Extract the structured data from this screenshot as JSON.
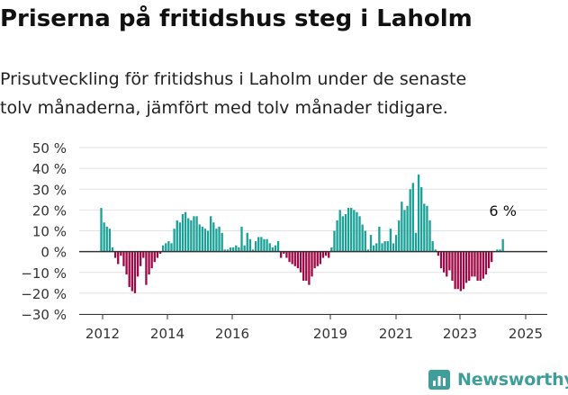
{
  "header": {
    "title": "Priserna på fritidshus steg i Laholm",
    "subtitle_line1": "Prisutveckling för fritidshus i Laholm under de senaste",
    "subtitle_line2": "tolv månaderna, jämfört med tolv månader tidigare."
  },
  "brand": {
    "name": "Newsworthy",
    "icon": "newsworthy-logo-icon",
    "color": "#3f9e9a"
  },
  "colors": {
    "positive": "#1aa197",
    "negative": "#9e0846",
    "axis": "#333333",
    "grid": "#e2e2e2"
  },
  "chart_data": {
    "type": "bar",
    "title": "",
    "xlabel": "",
    "ylabel": "",
    "ylim": [
      -30,
      50
    ],
    "yticks": [
      {
        "value": 50,
        "label": "50 %"
      },
      {
        "value": 40,
        "label": "40 %"
      },
      {
        "value": 30,
        "label": "30 %"
      },
      {
        "value": 20,
        "label": "20 %"
      },
      {
        "value": 10,
        "label": "10 %"
      },
      {
        "value": 0,
        "label": "0 %"
      },
      {
        "value": -10,
        "label": "−10 %"
      },
      {
        "value": -20,
        "label": "−20 %"
      },
      {
        "value": -30,
        "label": "−30 %"
      }
    ],
    "xticks": [
      "2012",
      "2014",
      "2016",
      "2019",
      "2021",
      "2023",
      "2025"
    ],
    "grid": true,
    "annotation": {
      "label": "6 %",
      "value": 6
    },
    "series": [
      {
        "year": 2012,
        "values": [
          21,
          14,
          12,
          11,
          2,
          -3,
          -6,
          -2,
          -7,
          -11,
          -17,
          -19,
          -20
        ]
      },
      {
        "year": 2013,
        "values": [
          -12,
          -7,
          -3,
          -16,
          -11,
          -8,
          -5,
          -3,
          -1,
          3,
          4,
          5,
          4
        ]
      },
      {
        "year": 2014,
        "values": [
          11,
          15,
          14,
          18,
          19,
          16,
          15,
          17,
          17,
          13,
          12,
          11,
          10
        ]
      },
      {
        "year": 2015,
        "values": [
          17,
          14,
          11,
          12,
          9,
          1,
          1,
          2,
          2,
          3,
          2,
          12,
          3
        ]
      },
      {
        "year": 2016,
        "values": [
          9,
          6,
          1,
          5,
          7,
          7,
          6,
          6,
          4,
          2,
          3,
          5,
          -3
        ]
      },
      {
        "year": 2017,
        "values": [
          -1,
          -3,
          -5,
          -6,
          -7,
          -8,
          -10,
          -14,
          -14,
          -16,
          -12,
          -8,
          -7
        ]
      },
      {
        "year": 2018,
        "values": [
          -6,
          -3,
          -2,
          -3,
          2,
          10,
          15,
          20,
          17,
          18,
          21,
          21,
          20
        ]
      },
      {
        "year": 2019,
        "values": [
          19,
          17,
          13,
          10,
          1,
          8,
          3,
          4,
          12,
          4,
          5,
          5,
          11
        ]
      },
      {
        "year": 2020,
        "values": [
          4,
          8,
          15,
          24,
          20,
          22,
          30,
          33,
          9,
          37,
          31,
          23,
          22
        ]
      },
      {
        "year": 2021,
        "values": [
          15,
          5,
          1,
          -2,
          -8,
          -10,
          -12,
          -9,
          -14,
          -18,
          -18,
          -19,
          -18
        ]
      },
      {
        "year": 2022,
        "values": [
          -15,
          -14,
          -12,
          -12,
          -14,
          -14,
          -13,
          -11,
          -8,
          -5,
          0,
          1,
          1
        ]
      },
      {
        "year": 2023,
        "values": [
          6
        ]
      }
    ]
  }
}
